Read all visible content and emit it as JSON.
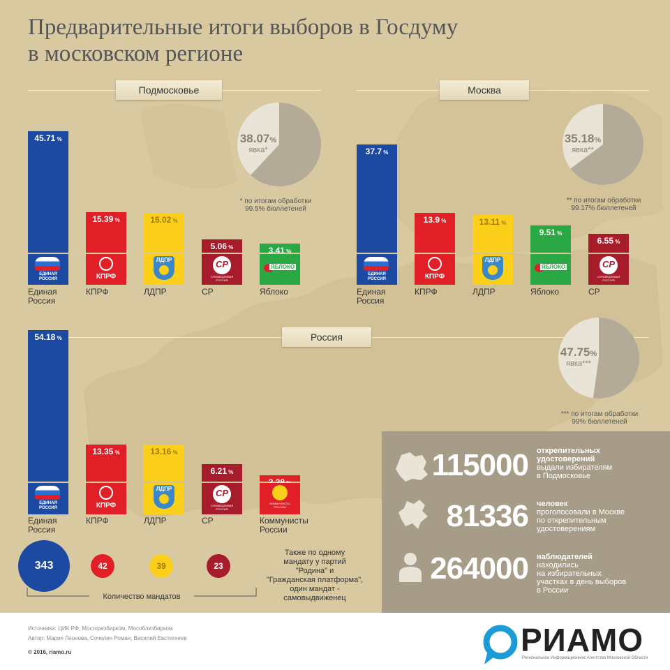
{
  "title_line1": "Предварительные итоги выборов в Госдуму",
  "title_line2": "в московском регионе",
  "colors": {
    "er": "#1c4aa3",
    "kprf": "#e01f26",
    "ldpr": "#fccf1b",
    "sr": "#a61c2a",
    "yabloko": "#2aa843",
    "kr": "#e01f26",
    "bg": "#d9c9a1",
    "info": "#a69c87",
    "pie_light": "#e9e4d8",
    "pie_dark": "#b3ab98"
  },
  "logos": {
    "er_line1": "ЕДИНАЯ",
    "er_line2": "РОССИЯ",
    "kprf": "КПРФ",
    "ldpr": "ЛДПР",
    "sr": "СР",
    "sr_line1": "СПРАВЕДЛИВАЯ",
    "sr_line2": "РОССИЯ",
    "yabloko": "ЯБЛОКО",
    "kr_line1": "КОММУНИСТЫ",
    "kr_line2": "РОССИИ"
  },
  "podm": {
    "tag": "Подмосковье",
    "pie_value": "38.07",
    "pie_pct": "%",
    "pie_label": "явка*",
    "turnout": 38.07,
    "note_line1": "* по итогам обработки",
    "note_line2": "99.5% бюллетеней"
  },
  "mosk": {
    "tag": "Москва",
    "pie_value": "35.18",
    "pie_pct": "%",
    "pie_label": "явка**",
    "turnout": 35.18,
    "note_line1": "** по итогам обработки",
    "note_line2": "99.17% бюллетеней"
  },
  "rus": {
    "tag": "Россия",
    "pie_value": "47.75",
    "pie_pct": "%",
    "pie_label": "явка***",
    "turnout": 47.75,
    "note_line1": "*** по итогам обработки",
    "note_line2": "99% бюллетеней"
  },
  "chart_data": [
    {
      "type": "bar",
      "title": "Подмосковье",
      "categories": [
        "Единая Россия",
        "КПРФ",
        "ЛДПР",
        "СР",
        "Яблоко"
      ],
      "values": [
        45.71,
        15.39,
        15.02,
        5.06,
        3.41
      ],
      "labels": [
        "45.71",
        "15.39",
        "15.02",
        "5.06",
        "3.41"
      ]
    },
    {
      "type": "bar",
      "title": "Москва",
      "categories": [
        "Единая Россия",
        "КПРФ",
        "ЛДПР",
        "Яблоко",
        "СР"
      ],
      "values": [
        37.7,
        13.9,
        13.11,
        9.51,
        6.55
      ],
      "labels": [
        "37.7",
        "13.9",
        "13.11",
        "9.51",
        "6.55"
      ]
    },
    {
      "type": "bar",
      "title": "Россия",
      "categories": [
        "Единая Россия",
        "КПРФ",
        "ЛДПР",
        "СР",
        "Коммунисты России"
      ],
      "values": [
        54.18,
        13.35,
        13.16,
        6.21,
        2.28
      ],
      "labels": [
        "54.18",
        "13.35",
        "13.16",
        "6.21",
        "2.28"
      ],
      "mandates": [
        343,
        42,
        39,
        23
      ]
    },
    {
      "type": "pie",
      "title": "Подмосковье",
      "values": [
        38.07,
        61.93
      ]
    },
    {
      "type": "pie",
      "title": "Москва",
      "values": [
        35.18,
        64.82
      ]
    },
    {
      "type": "pie",
      "title": "Россия",
      "values": [
        47.75,
        52.25
      ]
    }
  ],
  "pct_sign": "%",
  "labels": {
    "podm": [
      [
        "Единая",
        "Россия"
      ],
      [
        "КПРФ"
      ],
      [
        "ЛДПР"
      ],
      [
        "СР"
      ],
      [
        "Яблоко"
      ]
    ],
    "mosk": [
      [
        "Единая",
        "Россия"
      ],
      [
        "КПРФ"
      ],
      [
        "ЛДПР"
      ],
      [
        "Яблоко"
      ],
      [
        "СР"
      ]
    ],
    "rus": [
      [
        "Единая",
        "Россия"
      ],
      [
        "КПРФ"
      ],
      [
        "ЛДПР"
      ],
      [
        "СР"
      ],
      [
        "Коммунисты",
        "России"
      ]
    ]
  },
  "mandates": {
    "values": [
      "343",
      "42",
      "39",
      "23"
    ],
    "caption": "Количество мандатов",
    "note": [
      "Также по одному",
      "мандату у партий",
      "\"Родина\" и",
      "\"Гражданская платформа\",",
      "один мандат -",
      "самовыдвиженец"
    ]
  },
  "info": {
    "n1": "115000",
    "n1_bold": [
      "открепительных",
      "удостоверений"
    ],
    "n1_text": [
      "выдали избирателям",
      "в Подмосковье"
    ],
    "n2": "81336",
    "n2_bold": [
      "человек"
    ],
    "n2_text": [
      "проголосовали в Москве",
      "по открепительным",
      "удостоверениям"
    ],
    "n3": "264000",
    "n3_bold": [
      "наблюдателей"
    ],
    "n3_text": [
      "находились",
      "на избирательных",
      "участках в день выборов",
      "в России"
    ]
  },
  "footer": {
    "sources": "Источники: ЦИК РФ, Мосгоризбирком, Мособлизбирком",
    "authors": "Автор: Мария Леонова, Сочелин Роман, Василий Евстигнеев",
    "copyright": "© 2016, riamo.ru",
    "brand": "РИАМО",
    "brand_sub": "Региональное Информационное Агентство Московской Области"
  }
}
